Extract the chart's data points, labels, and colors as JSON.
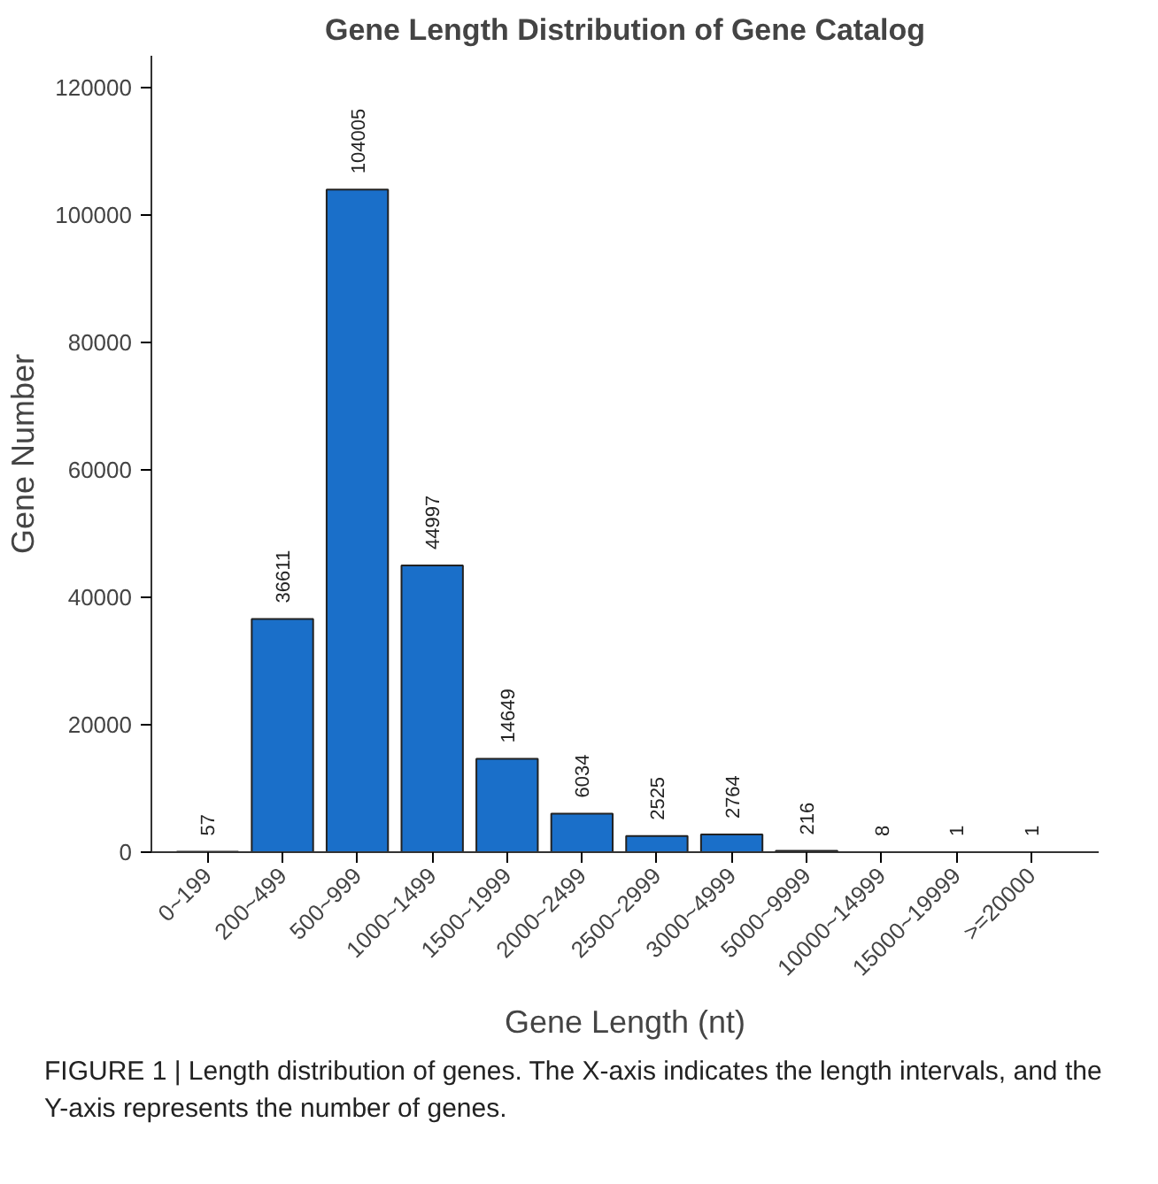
{
  "chart_data": {
    "type": "bar",
    "title": "Gene Length Distribution of Gene Catalog",
    "xlabel": "Gene Length (nt)",
    "ylabel": "Gene Number",
    "categories": [
      "0~199",
      "200~499",
      "500~999",
      "1000~1499",
      "1500~1999",
      "2000~2499",
      "2500~2999",
      "3000~4999",
      "5000~9999",
      "10000~14999",
      "15000~19999",
      ">=20000"
    ],
    "values": [
      57,
      36611,
      104005,
      44997,
      14649,
      6034,
      2525,
      2764,
      216,
      8,
      1,
      1
    ],
    "color": "#1a6fc9",
    "ylim": [
      0,
      125000
    ],
    "yticks": [
      0,
      20000,
      40000,
      60000,
      80000,
      100000,
      120000
    ],
    "grid": false,
    "data_labels": true,
    "annotations": [
      "FIGURE 1 | Length distribution of genes. The X-axis indicates the length intervals, and the Y-axis represents the number of genes."
    ]
  }
}
